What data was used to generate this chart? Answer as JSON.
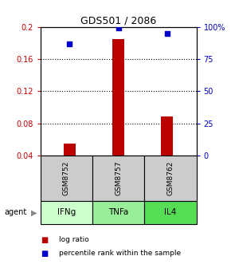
{
  "title": "GDS501 / 2086",
  "samples": [
    "GSM8752",
    "GSM8757",
    "GSM8762"
  ],
  "agents": [
    "IFNg",
    "TNFa",
    "IL4"
  ],
  "log_ratio": [
    0.055,
    0.185,
    0.088
  ],
  "percentile_rank": [
    0.87,
    0.99,
    0.945
  ],
  "ylim_left": [
    0.04,
    0.2
  ],
  "yticks_left": [
    0.04,
    0.08,
    0.12,
    0.16,
    0.2
  ],
  "ytick_labels_left": [
    "0.04",
    "0.08",
    "0.12",
    "0.16",
    "0.2"
  ],
  "yticks_right": [
    0.0,
    0.25,
    0.5,
    0.75,
    1.0
  ],
  "ytick_labels_right": [
    "0",
    "25",
    "50",
    "75",
    "100%"
  ],
  "bar_color": "#bb0000",
  "square_color": "#0000cc",
  "agent_colors": [
    "#ccffcc",
    "#99ee99",
    "#55dd55"
  ],
  "sample_box_color": "#cccccc",
  "legend_items": [
    "log ratio",
    "percentile rank within the sample"
  ],
  "bar_width": 0.25
}
